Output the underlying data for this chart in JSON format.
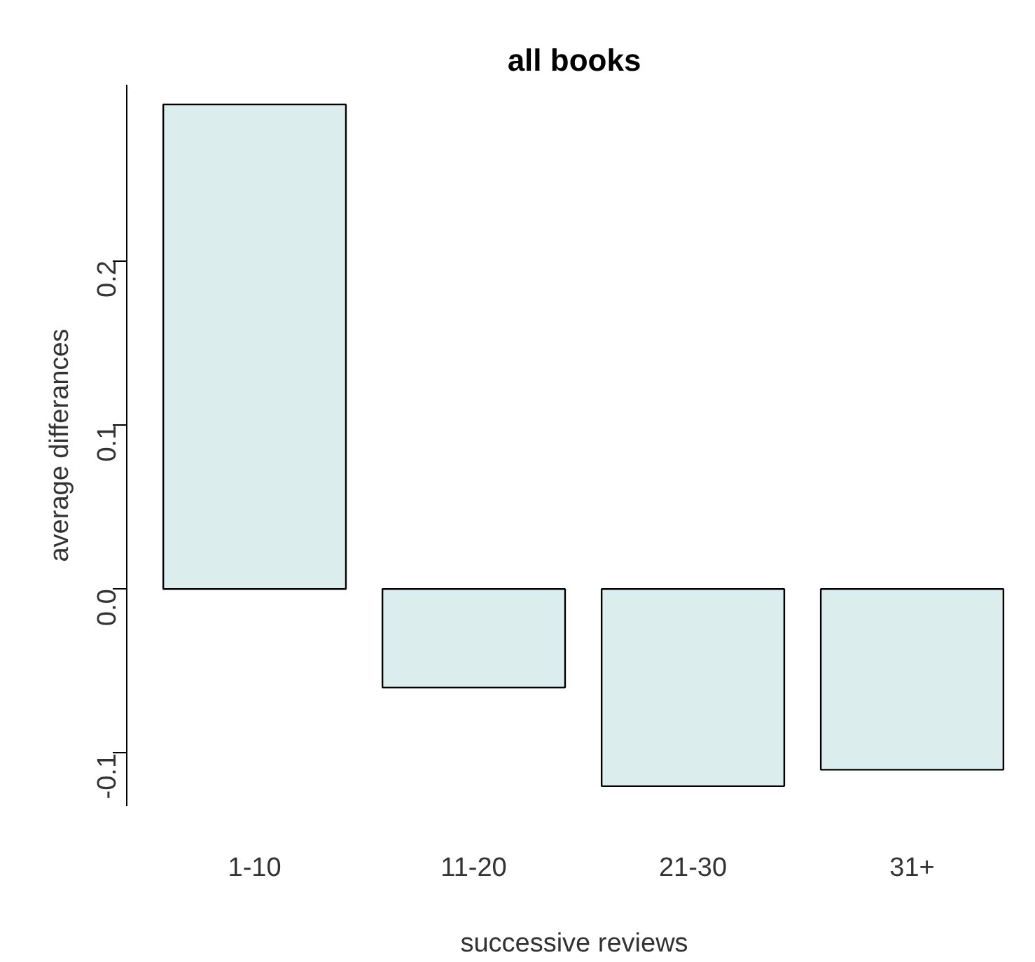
{
  "chart_data": {
    "type": "bar",
    "title": "all books",
    "xlabel": "successive reviews",
    "ylabel": "average differances",
    "categories": [
      "1-10",
      "11-20",
      "21-30",
      "31+"
    ],
    "values": [
      0.295,
      -0.06,
      -0.12,
      -0.11
    ],
    "color": "#dbeded",
    "ylim": [
      -0.132,
      0.307
    ],
    "yticks": [
      {
        "value": -0.1,
        "label": "-0.1"
      },
      {
        "value": 0,
        "label": "0.0"
      },
      {
        "value": 0.1,
        "label": "0.1"
      },
      {
        "value": 0.2,
        "label": "0.2"
      }
    ],
    "grid": false
  }
}
